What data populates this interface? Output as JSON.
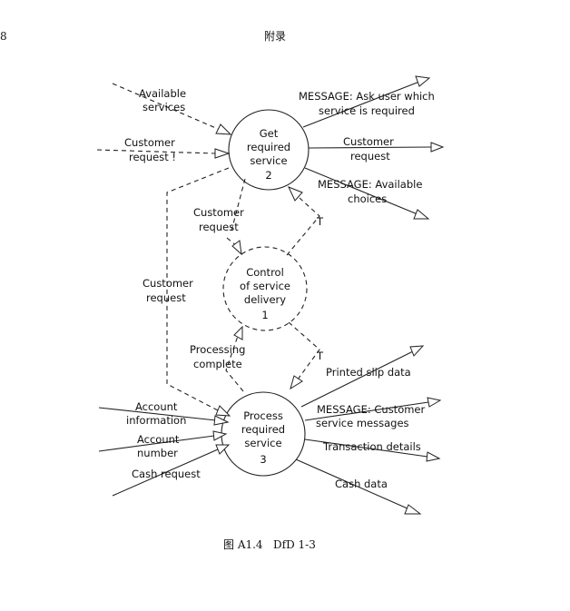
{
  "header": {
    "page_number": "8",
    "section_title": "附录"
  },
  "figure": {
    "caption": "图 A1.4   DfD 1-3"
  },
  "processes": [
    {
      "id": "get",
      "lines": [
        "Get",
        "required",
        "service"
      ],
      "number": "2"
    },
    {
      "id": "control",
      "lines": [
        "Control",
        "of service",
        "delivery"
      ],
      "number": "1"
    },
    {
      "id": "process",
      "lines": [
        "Process",
        "required",
        "service"
      ],
      "number": "3"
    }
  ],
  "flows": {
    "available_services": [
      "Available",
      "services"
    ],
    "customer_request_in": [
      "Customer",
      "request !"
    ],
    "message_ask": [
      "MESSAGE: Ask user which",
      "service is required"
    ],
    "customer_request_out": [
      "Customer",
      "request"
    ],
    "message_choices": [
      "MESSAGE: Available",
      "choices"
    ],
    "customer_request_ctrl": [
      "Customer",
      "request"
    ],
    "trigger_top": "T",
    "customer_request_long": [
      "Customer",
      "request"
    ],
    "processing_complete": [
      "Processing",
      "complete"
    ],
    "trigger_bottom": "T",
    "account_information": [
      "Account",
      "information"
    ],
    "account_number": [
      "Account",
      "number"
    ],
    "cash_request": "Cash request",
    "printed_slip": "Printed slip data",
    "message_customer": [
      "MESSAGE: Customer",
      "service messages"
    ],
    "transaction_details": "Transaction details",
    "cash_data": "Cash data"
  }
}
